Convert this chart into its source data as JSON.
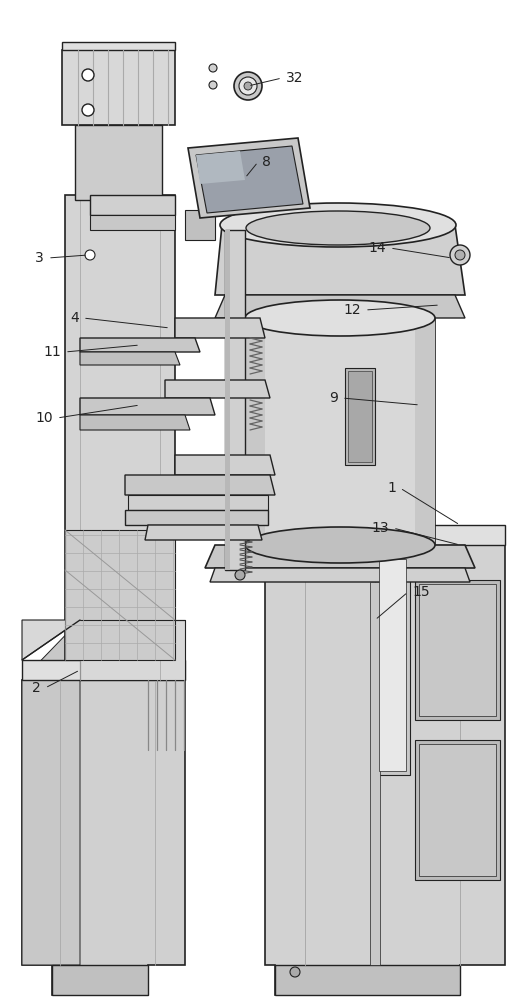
{
  "background_color": "#ffffff",
  "line_color": "#222222",
  "figsize": [
    5.27,
    10.0
  ],
  "dpi": 100,
  "labels": [
    [
      "32",
      282,
      78
    ],
    [
      "8",
      258,
      162
    ],
    [
      "3",
      50,
      258
    ],
    [
      "4",
      85,
      318
    ],
    [
      "11",
      68,
      352
    ],
    [
      "10",
      60,
      418
    ],
    [
      "14",
      388,
      248
    ],
    [
      "12",
      362,
      310
    ],
    [
      "9",
      340,
      398
    ],
    [
      "1",
      398,
      488
    ],
    [
      "13",
      392,
      528
    ],
    [
      "2",
      48,
      688
    ],
    [
      "15",
      405,
      592
    ]
  ]
}
